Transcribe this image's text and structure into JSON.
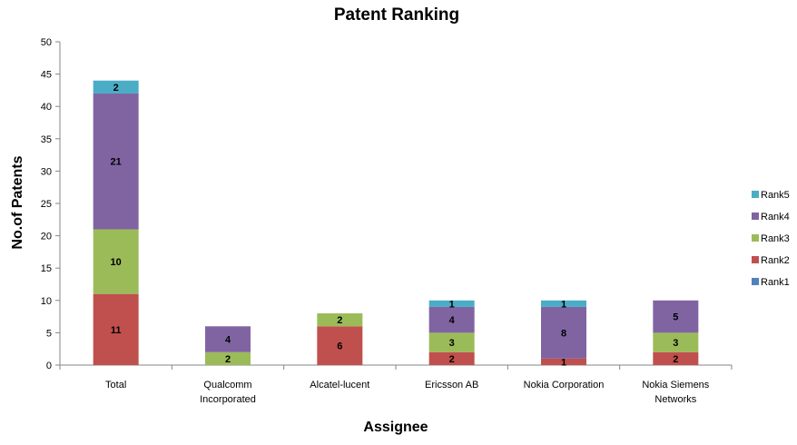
{
  "chart_data": {
    "type": "bar",
    "stacked": true,
    "title": "Patent Ranking",
    "xlabel": "Assignee",
    "ylabel": "No.of Patents",
    "ylim": [
      0,
      50
    ],
    "yticks": [
      0,
      5,
      10,
      15,
      20,
      25,
      30,
      35,
      40,
      45,
      50
    ],
    "categories": [
      [
        "Total"
      ],
      [
        "Qualcomm",
        "Incorporated"
      ],
      [
        "Alcatel-lucent"
      ],
      [
        "Ericsson AB"
      ],
      [
        "Nokia Corporation"
      ],
      [
        "Nokia Siemens",
        "Networks"
      ]
    ],
    "series": [
      {
        "name": "Rank1",
        "color": "#4F81BD",
        "values": [
          0,
          0,
          0,
          0,
          0,
          0
        ]
      },
      {
        "name": "Rank2",
        "color": "#C0504D",
        "values": [
          11,
          0,
          6,
          2,
          1,
          2
        ]
      },
      {
        "name": "Rank3",
        "color": "#9BBB59",
        "values": [
          10,
          2,
          2,
          3,
          0,
          3
        ]
      },
      {
        "name": "Rank4",
        "color": "#8064A2",
        "values": [
          21,
          4,
          0,
          4,
          8,
          5
        ]
      },
      {
        "name": "Rank5",
        "color": "#4BACC6",
        "values": [
          2,
          0,
          0,
          1,
          1,
          0
        ]
      }
    ],
    "legend_position": "right",
    "grid": false
  }
}
